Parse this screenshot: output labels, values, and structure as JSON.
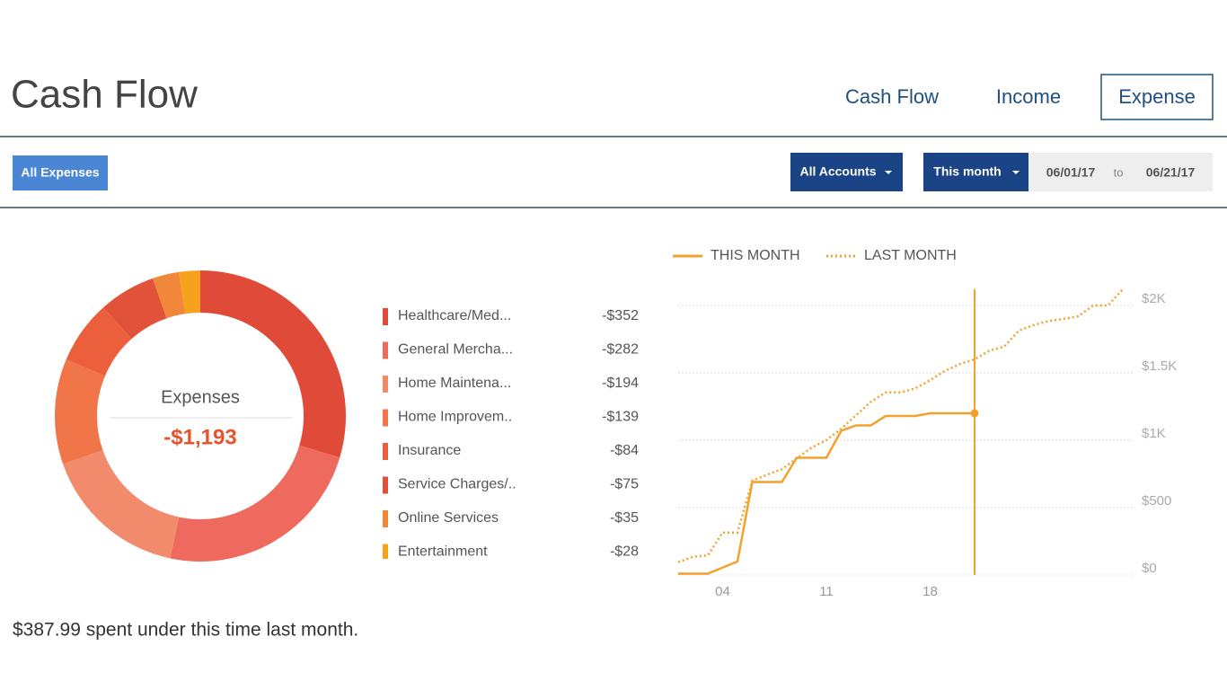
{
  "header": {
    "title": "Cash Flow",
    "tabs": [
      "Cash Flow",
      "Income",
      "Expense"
    ],
    "active_tab": 2
  },
  "toolbar": {
    "category_filter": "All Expenses",
    "account_filter": "All Accounts",
    "period": "This month",
    "start_date": "06/01/17",
    "date_separator": "to",
    "end_date": "06/21/17"
  },
  "chart_data": [
    {
      "type": "donut",
      "center_label": "Expenses",
      "total": -1193,
      "total_label": "-$1,193",
      "categories": [
        "Healthcare/Med...",
        "General Mercha...",
        "Home Maintena...",
        "Home Improvem..",
        "Insurance",
        "Service Charges/..",
        "Online Services",
        "Entertainment"
      ],
      "values": [
        -352,
        -282,
        -194,
        -139,
        -84,
        -75,
        -35,
        -28
      ],
      "value_labels": [
        "-$352",
        "-$282",
        "-$194",
        "-$139",
        "-$84",
        "-$75",
        "-$35",
        "-$28"
      ],
      "colors": [
        "#e04a38",
        "#ef6a5e",
        "#f28a6c",
        "#f07549",
        "#ec5f3c",
        "#e2513a",
        "#f0873a",
        "#f6a21d"
      ]
    },
    {
      "type": "line",
      "legend": "top",
      "x": [
        1,
        2,
        3,
        4,
        5,
        6,
        7,
        8,
        9,
        10,
        11,
        12,
        13,
        14,
        15,
        16,
        17,
        18,
        19,
        20,
        21,
        22,
        23,
        24,
        25,
        26,
        27,
        28,
        29,
        30,
        31
      ],
      "series": [
        {
          "name": "THIS MONTH",
          "color": "#f4a12c",
          "dash": "solid",
          "values": [
            10,
            10,
            10,
            55,
            100,
            690,
            690,
            690,
            870,
            870,
            870,
            1070,
            1110,
            1110,
            1180,
            1180,
            1180,
            1200,
            1200,
            1200,
            1200,
            null,
            null,
            null,
            null,
            null,
            null,
            null,
            null,
            null,
            null
          ]
        },
        {
          "name": "LAST MONTH",
          "color": "#f4a12c",
          "dash": "dotted",
          "values": [
            95,
            135,
            145,
            315,
            315,
            700,
            745,
            785,
            865,
            945,
            1000,
            1085,
            1185,
            1285,
            1355,
            1355,
            1385,
            1445,
            1515,
            1565,
            1600,
            1665,
            1695,
            1815,
            1855,
            1885,
            1900,
            1920,
            2000,
            2000,
            2120
          ]
        }
      ],
      "marker_x": 21,
      "xlim": [
        1,
        31
      ],
      "xticks": [
        {
          "value": 4,
          "label": "04"
        },
        {
          "value": 11,
          "label": "11"
        },
        {
          "value": 18,
          "label": "18"
        }
      ],
      "ylim": [
        0,
        2120
      ],
      "yticks": [
        {
          "value": 0,
          "label": "$0"
        },
        {
          "value": 500,
          "label": "$500"
        },
        {
          "value": 1000,
          "label": "$1K"
        },
        {
          "value": 1500,
          "label": "$1.5K"
        },
        {
          "value": 2000,
          "label": "$2K"
        }
      ],
      "grid": true
    }
  ],
  "summary": "$387.99 spent under this time last month."
}
